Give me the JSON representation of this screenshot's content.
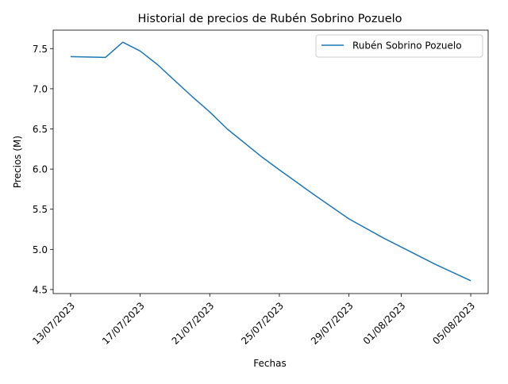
{
  "chart_data": {
    "type": "line",
    "title": "Historial de precios de Rubén Sobrino Pozuelo",
    "xlabel": "Fechas",
    "ylabel": "Precios (M)",
    "legend_position": "top-right",
    "grid": false,
    "x_ticks": [
      "13/07/2023",
      "17/07/2023",
      "21/07/2023",
      "25/07/2023",
      "29/07/2023",
      "01/08/2023",
      "05/08/2023"
    ],
    "y_ticks": [
      "4.5",
      "5.0",
      "5.5",
      "6.0",
      "6.5",
      "7.0",
      "7.5"
    ],
    "ylim": [
      4.45,
      7.73
    ],
    "xlim": [
      "12/07/2023",
      "06/08/2023"
    ],
    "series": [
      {
        "name": "Rubén Sobrino Pozuelo",
        "color": "#1f77b4",
        "x": [
          "13/07/2023",
          "15/07/2023",
          "16/07/2023",
          "17/07/2023",
          "18/07/2023",
          "19/07/2023",
          "20/07/2023",
          "21/07/2023",
          "22/07/2023",
          "24/07/2023",
          "25/07/2023",
          "27/07/2023",
          "29/07/2023",
          "31/07/2023",
          "01/08/2023",
          "03/08/2023",
          "05/08/2023"
        ],
        "values": [
          7.4,
          7.39,
          7.58,
          7.47,
          7.3,
          7.1,
          6.9,
          6.71,
          6.5,
          6.15,
          5.99,
          5.68,
          5.38,
          5.14,
          5.03,
          4.81,
          4.61
        ]
      }
    ]
  }
}
